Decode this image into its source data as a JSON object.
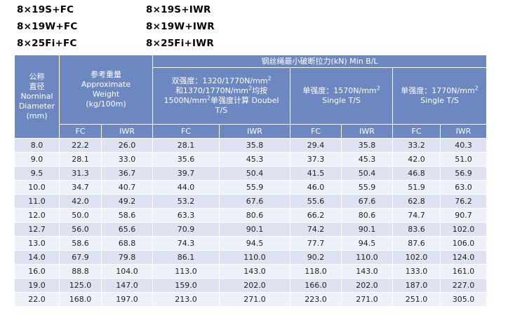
{
  "specs": [
    "8×19S+FC",
    "8×19S+IWR",
    "8×19W+FC",
    "8×19W+IWR",
    "8×25Fi+FC",
    "8×25Fi+IWR"
  ],
  "table": {
    "header": {
      "diameter": [
        "公称",
        "直径",
        "Norninal",
        "Diameter",
        "(mm)"
      ],
      "weight": [
        "参考重量",
        "Approximate",
        "Weight",
        "(kg/100m)"
      ],
      "break_load": "钢丝绳最小破断拉力(kN) Min B/L",
      "dual": {
        "line1": "双强度：1320/1770N/mm",
        "sup": "2",
        "line2a": "和1370/1770N/mm",
        "line2b": "均按",
        "line3a": "1500N/mm",
        "line3b": "单强度计算 Doubel",
        "line4": "T/S"
      },
      "single1570": {
        "line1": "单强度：1570N/mm",
        "sup": "2",
        "line2": "Single T/S"
      },
      "single1770": {
        "line1": "单强度：1770N/mm",
        "sup": "2",
        "line2": "Single T/S"
      },
      "sub": [
        "FC",
        "IWR",
        "FC",
        "IWR",
        "FC",
        "IWR",
        "FC",
        "IWR"
      ]
    },
    "rows": [
      [
        "8.0",
        "22.2",
        "26.0",
        "28.1",
        "35.8",
        "29.4",
        "35.8",
        "33.2",
        "40.3"
      ],
      [
        "9.0",
        "28.1",
        "33.0",
        "35.6",
        "45.3",
        "37.3",
        "45.3",
        "42.0",
        "51.0"
      ],
      [
        "9.5",
        "31.3",
        "36.7",
        "39.7",
        "50.4",
        "41.5",
        "50.4",
        "46.8",
        "56.9"
      ],
      [
        "10.0",
        "34.7",
        "40.7",
        "44.0",
        "55.9",
        "46.0",
        "55.9",
        "51.9",
        "63.0"
      ],
      [
        "11.0",
        "42.0",
        "49.2",
        "53.2",
        "67.6",
        "55.6",
        "67.6",
        "62.8",
        "76.2"
      ],
      [
        "12.0",
        "50.0",
        "58.6",
        "63.3",
        "80.6",
        "66.2",
        "80.6",
        "74.7",
        "90.7"
      ],
      [
        "12.7",
        "56.0",
        "65.6",
        "70.9",
        "90.1",
        "74.2",
        "90.1",
        "83.6",
        "102.0"
      ],
      [
        "13.0",
        "58.6",
        "68.8",
        "74.3",
        "94.5",
        "77.7",
        "94.5",
        "87.6",
        "106.0"
      ],
      [
        "14.0",
        "67.9",
        "79.8",
        "86.1",
        "110.0",
        "90.2",
        "110.0",
        "102.0",
        "124.0"
      ],
      [
        "16.0",
        "88.8",
        "104.0",
        "113.0",
        "143.0",
        "118.0",
        "143.0",
        "133.0",
        "161.0"
      ],
      [
        "19.0",
        "125.0",
        "147.0",
        "159.0",
        "202.0",
        "166.0",
        "202.0",
        "187.0",
        "227.0"
      ],
      [
        "22.0",
        "168.0",
        "197.0",
        "213.0",
        "271.0",
        "223.0",
        "271.0",
        "251.0",
        "305.0"
      ]
    ]
  }
}
